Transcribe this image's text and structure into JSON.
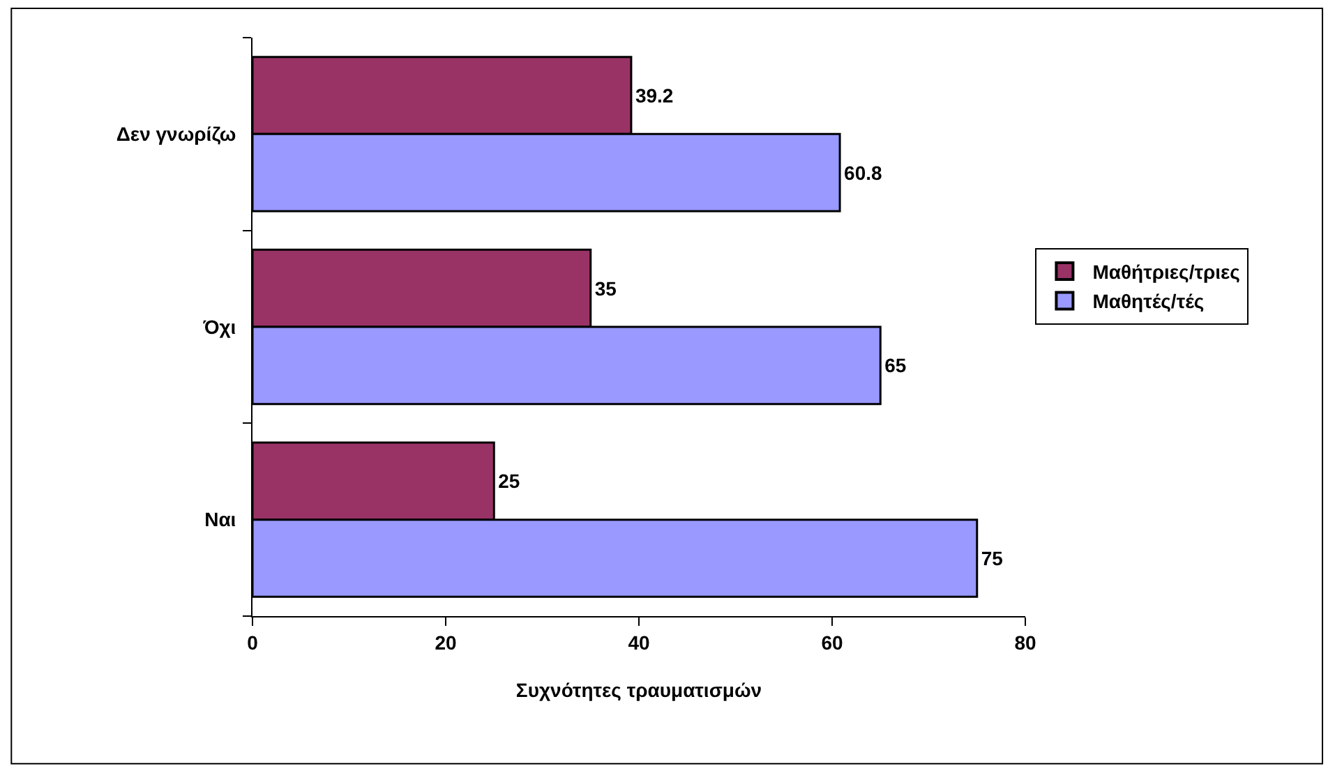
{
  "chart_data": {
    "type": "bar",
    "orientation": "horizontal",
    "categories": [
      "Δεν γνωρίζω",
      "Όχι",
      "Ναι"
    ],
    "xlabel": "Συχνότητες τραυματισμών",
    "series": [
      {
        "name": "Μαθήτριες/τριες",
        "color": "#993366",
        "values": [
          39.2,
          35,
          25
        ]
      },
      {
        "name": "Μαθητές/τές",
        "color": "#9999ff",
        "values": [
          60.8,
          65,
          75
        ]
      }
    ],
    "xlim": [
      0,
      80
    ],
    "xticks": [
      0,
      20,
      40,
      60,
      80
    ],
    "data_labels": true,
    "legend": "right"
  }
}
